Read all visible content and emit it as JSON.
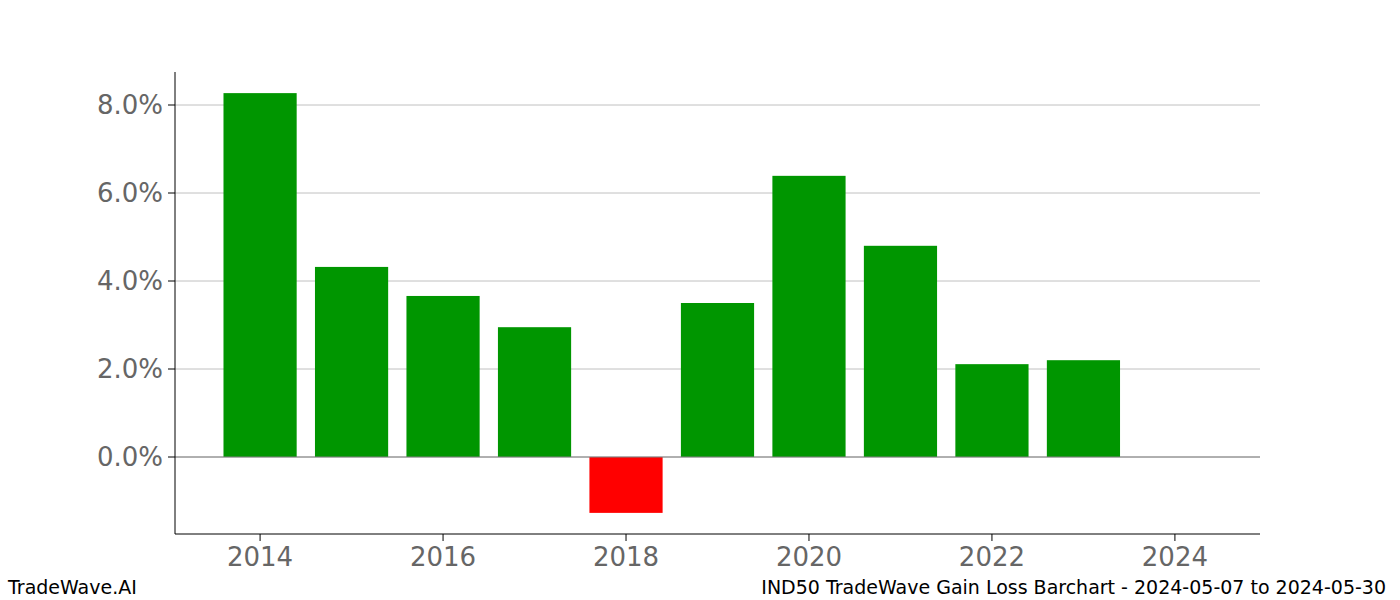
{
  "chart_data": {
    "type": "bar",
    "title": "IND50 TradeWave Gain Loss Barchart - 2024-05-07 to 2024-05-30",
    "annotations": [
      "TradeWave.AI"
    ],
    "x": [
      2014,
      2015,
      2016,
      2017,
      2018,
      2019,
      2020,
      2021,
      2022,
      2023
    ],
    "values": [
      8.27,
      4.32,
      3.66,
      2.95,
      -1.27,
      3.5,
      6.39,
      4.8,
      2.11,
      2.2
    ],
    "colors": [
      "#009600",
      "#009600",
      "#009600",
      "#009600",
      "#ff0000",
      "#009600",
      "#009600",
      "#009600",
      "#009600",
      "#009600"
    ],
    "xlim": [
      2013.07,
      2024.93
    ],
    "xticks": [
      2014,
      2016,
      2018,
      2020,
      2022,
      2024
    ],
    "ylim": [
      -1.75,
      8.75
    ],
    "yticks": [
      {
        "value": 0,
        "label": "0.0%"
      },
      {
        "value": 2,
        "label": "2.0%"
      },
      {
        "value": 4,
        "label": "4.0%"
      },
      {
        "value": 6,
        "label": "6.0%"
      },
      {
        "value": 8,
        "label": "8.0%"
      }
    ],
    "grid": true
  }
}
